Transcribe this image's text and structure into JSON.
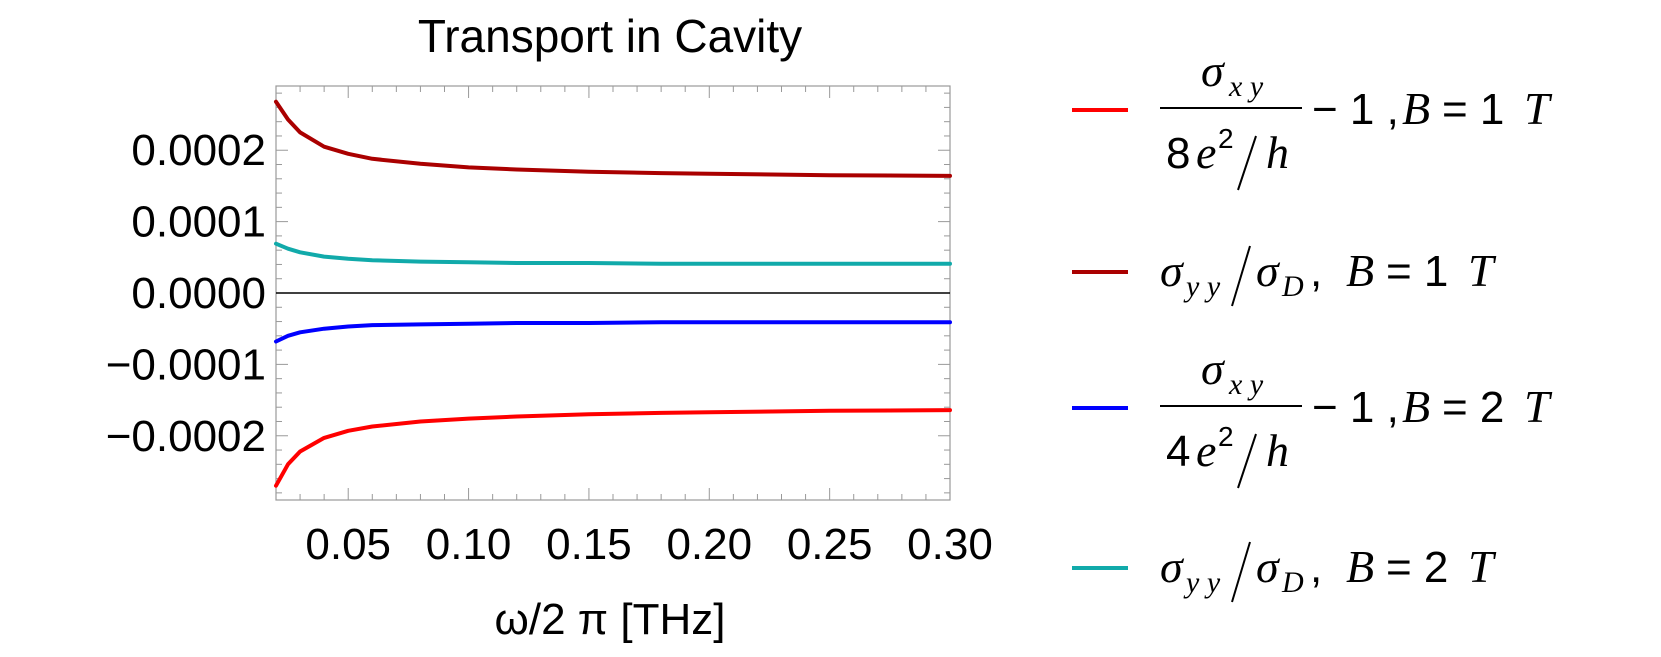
{
  "chart_data": {
    "type": "line",
    "title": "Transport in Cavity",
    "xlabel": "ω/2 π [THz]",
    "ylabel": "",
    "xlim": [
      0.02,
      0.3
    ],
    "ylim": [
      -0.00029,
      0.00029
    ],
    "x_ticks": [
      "0.05",
      "0.10",
      "0.15",
      "0.20",
      "0.25",
      "0.30"
    ],
    "y_ticks": [
      "0.0002",
      "0.0001",
      "0.0000",
      "−0.0001",
      "−0.0002"
    ],
    "y_tick_values": [
      0.0002,
      0.0001,
      0.0,
      -0.0001,
      -0.0002
    ],
    "x_tick_values": [
      0.05,
      0.1,
      0.15,
      0.2,
      0.25,
      0.3
    ],
    "grid": false,
    "legend_position": "right",
    "series": [
      {
        "name": "σxy/(8e²/h) − 1, B = 1 T",
        "color": "#ff0000",
        "x": [
          0.02,
          0.025,
          0.03,
          0.04,
          0.05,
          0.06,
          0.08,
          0.1,
          0.12,
          0.15,
          0.18,
          0.2,
          0.25,
          0.3
        ],
        "values": [
          -0.00027,
          -0.00024,
          -0.000222,
          -0.000203,
          -0.000193,
          -0.000187,
          -0.00018,
          -0.000176,
          -0.000173,
          -0.00017,
          -0.000168,
          -0.000167,
          -0.000165,
          -0.000164
        ]
      },
      {
        "name": "σyy/σD, B = 1 T",
        "color": "#aa0000",
        "x": [
          0.02,
          0.025,
          0.03,
          0.04,
          0.05,
          0.06,
          0.08,
          0.1,
          0.12,
          0.15,
          0.18,
          0.2,
          0.25,
          0.3
        ],
        "values": [
          0.000268,
          0.000243,
          0.000225,
          0.000205,
          0.000195,
          0.000188,
          0.000181,
          0.000176,
          0.000173,
          0.00017,
          0.000168,
          0.000167,
          0.000165,
          0.000164
        ]
      },
      {
        "name": "σxy/(4e²/h) − 1, B = 2 T",
        "color": "#0000ff",
        "x": [
          0.02,
          0.025,
          0.03,
          0.04,
          0.05,
          0.06,
          0.08,
          0.1,
          0.12,
          0.15,
          0.18,
          0.2,
          0.25,
          0.3
        ],
        "values": [
          -6.8e-05,
          -6e-05,
          -5.5e-05,
          -5e-05,
          -4.7e-05,
          -4.5e-05,
          -4.4e-05,
          -4.3e-05,
          -4.2e-05,
          -4.2e-05,
          -4.1e-05,
          -4.1e-05,
          -4.1e-05,
          -4.1e-05
        ]
      },
      {
        "name": "σyy/σD, B = 2 T",
        "color": "#11aaaa",
        "x": [
          0.02,
          0.025,
          0.03,
          0.04,
          0.05,
          0.06,
          0.08,
          0.1,
          0.12,
          0.15,
          0.18,
          0.2,
          0.25,
          0.3
        ],
        "values": [
          6.9e-05,
          6.2e-05,
          5.7e-05,
          5.1e-05,
          4.8e-05,
          4.6e-05,
          4.4e-05,
          4.3e-05,
          4.2e-05,
          4.2e-05,
          4.1e-05,
          4.1e-05,
          4.1e-05,
          4.1e-05
        ]
      }
    ]
  },
  "legend": [
    {
      "color": "#ff0000",
      "kind": "frac",
      "num": "σ",
      "num_sub": "x y",
      "den_coef": "8",
      "den_e": "e",
      "den_sup": "2",
      "den_h": "h",
      "minus_one": "− 1 ,",
      "b_label": "B",
      "eq": "= 1",
      "unit": "T"
    },
    {
      "color": "#aa0000",
      "kind": "ratio",
      "sig": "σ",
      "sig_sub": "y y",
      "sig2": "σ",
      "sig2_sub": "D",
      "comma": ",",
      "b_label": "B",
      "eq": "= 1",
      "unit": "T"
    },
    {
      "color": "#0000ff",
      "kind": "frac",
      "num": "σ",
      "num_sub": "x y",
      "den_coef": "4",
      "den_e": "e",
      "den_sup": "2",
      "den_h": "h",
      "minus_one": "− 1 ,",
      "b_label": "B",
      "eq": "= 2",
      "unit": "T"
    },
    {
      "color": "#11aaaa",
      "kind": "ratio",
      "sig": "σ",
      "sig_sub": "y y",
      "sig2": "σ",
      "sig2_sub": "D",
      "comma": ",",
      "b_label": "B",
      "eq": "= 2",
      "unit": "T"
    }
  ]
}
